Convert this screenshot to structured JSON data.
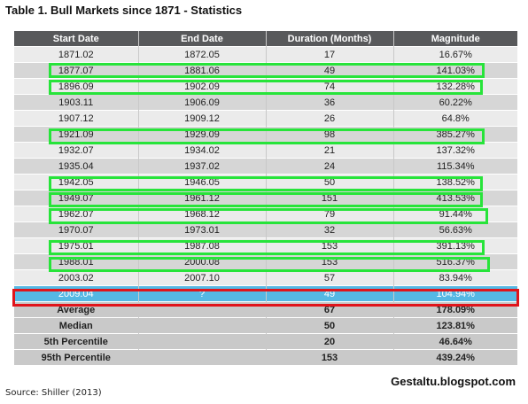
{
  "title": "Table 1. Bull Markets since 1871 - Statistics",
  "columns": [
    "Start Date",
    "End Date",
    "Duration (Months)",
    "Magnitude"
  ],
  "rows": [
    [
      "1871.02",
      "1872.05",
      "17",
      "16.67%"
    ],
    [
      "1877.07",
      "1881.06",
      "49",
      "141.03%"
    ],
    [
      "1896.09",
      "1902.09",
      "74",
      "132.28%"
    ],
    [
      "1903.11",
      "1906.09",
      "36",
      "60.22%"
    ],
    [
      "1907.12",
      "1909.12",
      "26",
      "64.8%"
    ],
    [
      "1921.09",
      "1929.09",
      "98",
      "385.27%"
    ],
    [
      "1932.07",
      "1934.02",
      "21",
      "137.32%"
    ],
    [
      "1935.04",
      "1937.02",
      "24",
      "115.34%"
    ],
    [
      "1942.05",
      "1946.05",
      "50",
      "138.52%"
    ],
    [
      "1949.07",
      "1961.12",
      "151",
      "413.53%"
    ],
    [
      "1962.07",
      "1968.12",
      "79",
      "91.44%"
    ],
    [
      "1970.07",
      "1973.01",
      "32",
      "56.63%"
    ],
    [
      "1975.01",
      "1987.08",
      "153",
      "391.13%"
    ],
    [
      "1988.01",
      "2000.08",
      "153",
      "516.37%"
    ],
    [
      "2003.02",
      "2007.10",
      "57",
      "83.94%"
    ]
  ],
  "current_row": [
    "2009.04",
    "?",
    "49",
    "104.94%"
  ],
  "stat_rows": [
    [
      "Average",
      "",
      "67",
      "178.09%"
    ],
    [
      "Median",
      "",
      "50",
      "123.81%"
    ],
    [
      "5th Percentile",
      "",
      "20",
      "46.64%"
    ],
    [
      "95th Percentile",
      "",
      "153",
      "439.24%"
    ]
  ],
  "highlight_colors": {
    "green": "#27e43a",
    "red": "#e0141b",
    "current_row_bg": "#55b8e4",
    "header_bg": "#58595b"
  },
  "watermark": "Gestaltu.blogspot.com",
  "source": "Source: Shiller (2013)"
}
